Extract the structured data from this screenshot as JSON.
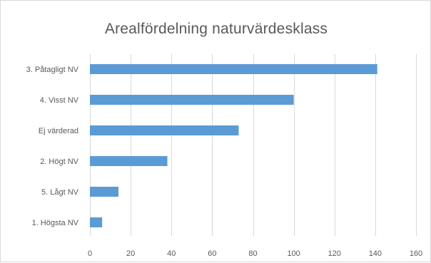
{
  "chart_data": {
    "type": "bar",
    "orientation": "horizontal",
    "title": "Arealfördelning  naturvärdesklass",
    "categories": [
      "3. Påtagligt NV",
      "4. Visst NV",
      "Ej värderad",
      "2. Högt NV",
      "5. Lågt NV",
      "1. Högsta NV"
    ],
    "values": [
      141,
      100,
      73,
      38,
      14,
      6
    ],
    "xlim": [
      0,
      160
    ],
    "xticks": [
      0,
      20,
      40,
      60,
      80,
      100,
      120,
      140,
      160
    ],
    "grid": true,
    "legend": "none",
    "bar_color": "#5b9bd5"
  }
}
